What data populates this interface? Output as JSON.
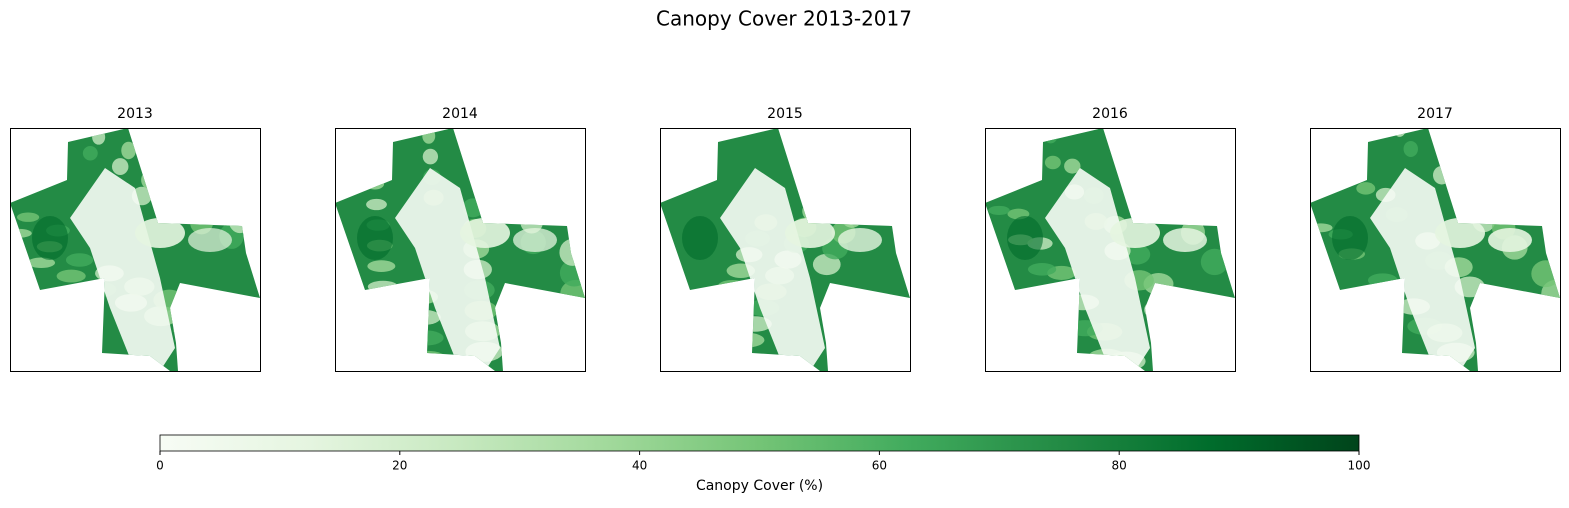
{
  "chart_data": {
    "type": "raster",
    "title": "Canopy Cover 2013-2017",
    "panels": [
      {
        "title": "2013"
      },
      {
        "title": "2014"
      },
      {
        "title": "2015"
      },
      {
        "title": "2016"
      },
      {
        "title": "2017"
      }
    ],
    "colorbar": {
      "label": "Canopy Cover (%)",
      "lim": [
        0,
        100
      ],
      "ticks": [
        0,
        20,
        40,
        60,
        80,
        100
      ],
      "cmap": "Greens"
    }
  }
}
